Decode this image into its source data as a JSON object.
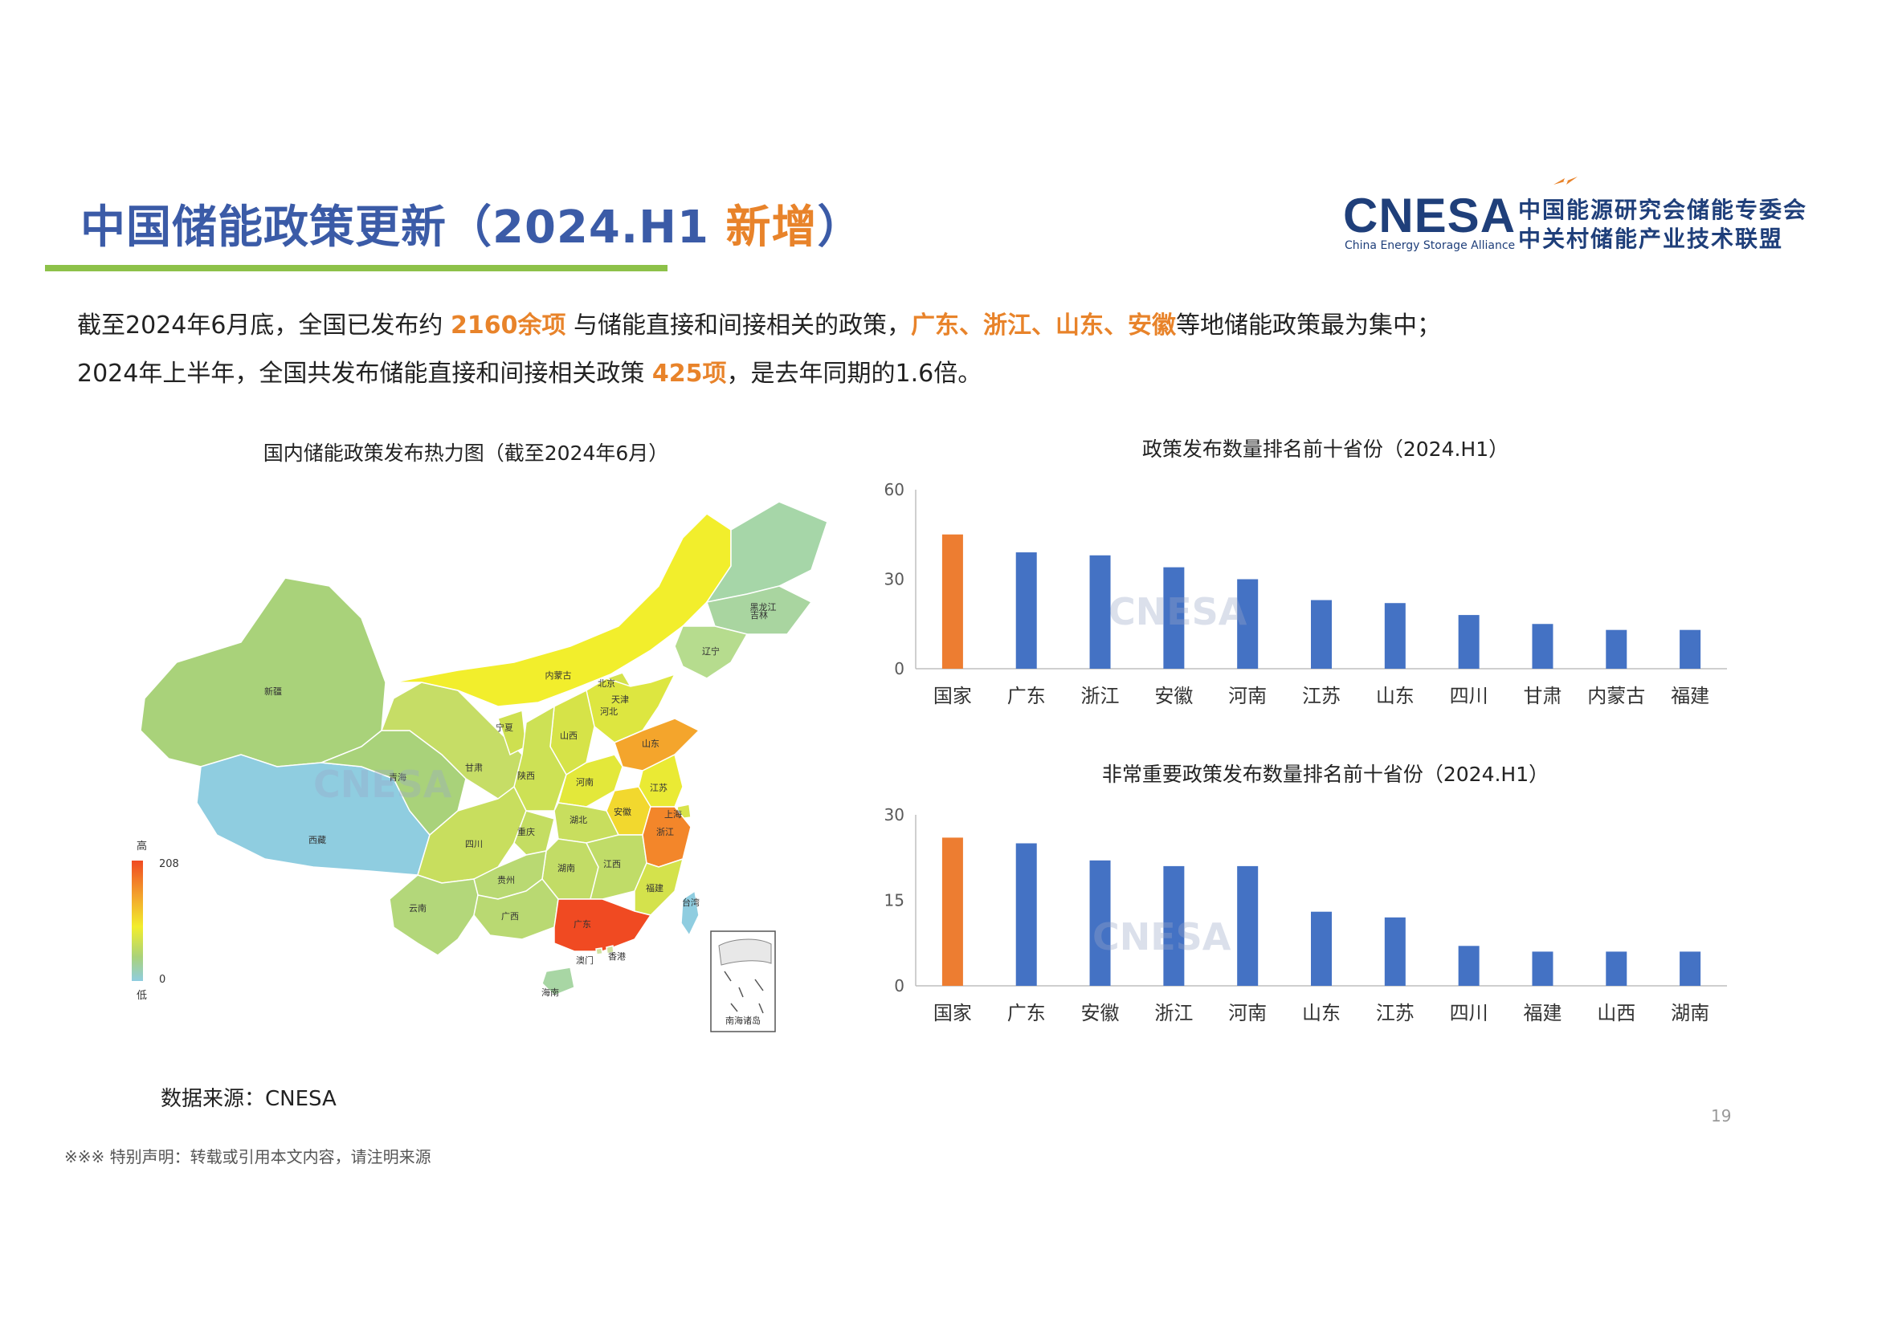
{
  "header": {
    "title_main": "中国储能政策更新（2024.H1 ",
    "title_highlight": "新增",
    "title_end": "）",
    "logo_mark": "CNESA",
    "logo_sub": "China Energy Storage Alliance",
    "logo_cn_line1": "中国能源研究会储能专委会",
    "logo_cn_line2": "中关村储能产业技术联盟"
  },
  "intro": {
    "line1_a": "截至2024年6月底，全国已发布约 ",
    "line1_b": "2160余项",
    "line1_c": " 与储能直接和间接相关的政策，",
    "line1_d": "广东、浙江、山东、安徽",
    "line1_e": "等地储能政策最为集中；",
    "line2_a": "2024年上半年，全国共发布储能直接和间接相关政策 ",
    "line2_b": "425项",
    "line2_c": "，是去年同期的1.6倍。"
  },
  "map": {
    "title": "国内储能政策发布热力图（截至2024年6月）",
    "legend_high": "高",
    "legend_low": "低",
    "legend_max": "208",
    "legend_min": "0",
    "inset_label": "南海诸岛",
    "provinces": [
      {
        "name": "新疆",
        "color": "#a9d27a"
      },
      {
        "name": "西藏",
        "color": "#8fcde0"
      },
      {
        "name": "青海",
        "color": "#a9d27a"
      },
      {
        "name": "甘肃",
        "color": "#c6dd66"
      },
      {
        "name": "内蒙古",
        "color": "#f2ee2c"
      },
      {
        "name": "黑龙江",
        "color": "#a6d6a8"
      },
      {
        "name": "吉林",
        "color": "#a9d5a0"
      },
      {
        "name": "辽宁",
        "color": "#b6dc8e"
      },
      {
        "name": "北京",
        "color": "#d4e24c"
      },
      {
        "name": "天津",
        "color": "#c9df58"
      },
      {
        "name": "河北",
        "color": "#dde640"
      },
      {
        "name": "宁夏",
        "color": "#cee050"
      },
      {
        "name": "山西",
        "color": "#d6e348"
      },
      {
        "name": "陕西",
        "color": "#cde155"
      },
      {
        "name": "山东",
        "color": "#f4a52c"
      },
      {
        "name": "河南",
        "color": "#e3e83a"
      },
      {
        "name": "江苏",
        "color": "#eaea34"
      },
      {
        "name": "安徽",
        "color": "#f2d82e"
      },
      {
        "name": "上海",
        "color": "#d8e34a"
      },
      {
        "name": "四川",
        "color": "#c8de5e"
      },
      {
        "name": "重庆",
        "color": "#c4dd62"
      },
      {
        "name": "湖北",
        "color": "#c8de5e"
      },
      {
        "name": "湖南",
        "color": "#c2dc66"
      },
      {
        "name": "江西",
        "color": "#c0dc68"
      },
      {
        "name": "浙江",
        "color": "#f3862a"
      },
      {
        "name": "福建",
        "color": "#d4e24c"
      },
      {
        "name": "贵州",
        "color": "#b9d972"
      },
      {
        "name": "云南",
        "color": "#b3d77a"
      },
      {
        "name": "广西",
        "color": "#b9d972"
      },
      {
        "name": "广东",
        "color": "#f04a22"
      },
      {
        "name": "香港",
        "color": "#cfe0a0"
      },
      {
        "name": "澳门",
        "color": "#cfe0a0"
      },
      {
        "name": "海南",
        "color": "#a8d6a4"
      },
      {
        "name": "台湾",
        "color": "#8fcde0"
      }
    ]
  },
  "chart_data": [
    {
      "type": "bar",
      "title": "政策发布数量排名前十省份（2024.H1）",
      "categories": [
        "国家",
        "广东",
        "浙江",
        "安徽",
        "河南",
        "江苏",
        "山东",
        "四川",
        "甘肃",
        "内蒙古",
        "福建"
      ],
      "values": [
        45,
        39,
        38,
        34,
        30,
        23,
        22,
        18,
        15,
        13,
        13
      ],
      "ylim": [
        0,
        60
      ],
      "yticks": [
        "0",
        "30",
        "60"
      ],
      "highlight_index": 0,
      "colors": {
        "highlight": "#ed7d31",
        "bar": "#4472c4"
      }
    },
    {
      "type": "bar",
      "title": "非常重要政策发布数量排名前十省份（2024.H1）",
      "categories": [
        "国家",
        "广东",
        "安徽",
        "浙江",
        "河南",
        "山东",
        "江苏",
        "四川",
        "福建",
        "山西",
        "湖南"
      ],
      "values": [
        26,
        25,
        22,
        21,
        21,
        13,
        12,
        7,
        6,
        6,
        6
      ],
      "ylim": [
        0,
        30
      ],
      "yticks": [
        "0",
        "15",
        "30"
      ],
      "highlight_index": 0,
      "colors": {
        "highlight": "#ed7d31",
        "bar": "#4472c4"
      }
    }
  ],
  "footer": {
    "source": "数据来源：CNESA",
    "page_number": "19",
    "disclaimer": "※※※ 特别声明：转载或引用本文内容，请注明来源"
  }
}
